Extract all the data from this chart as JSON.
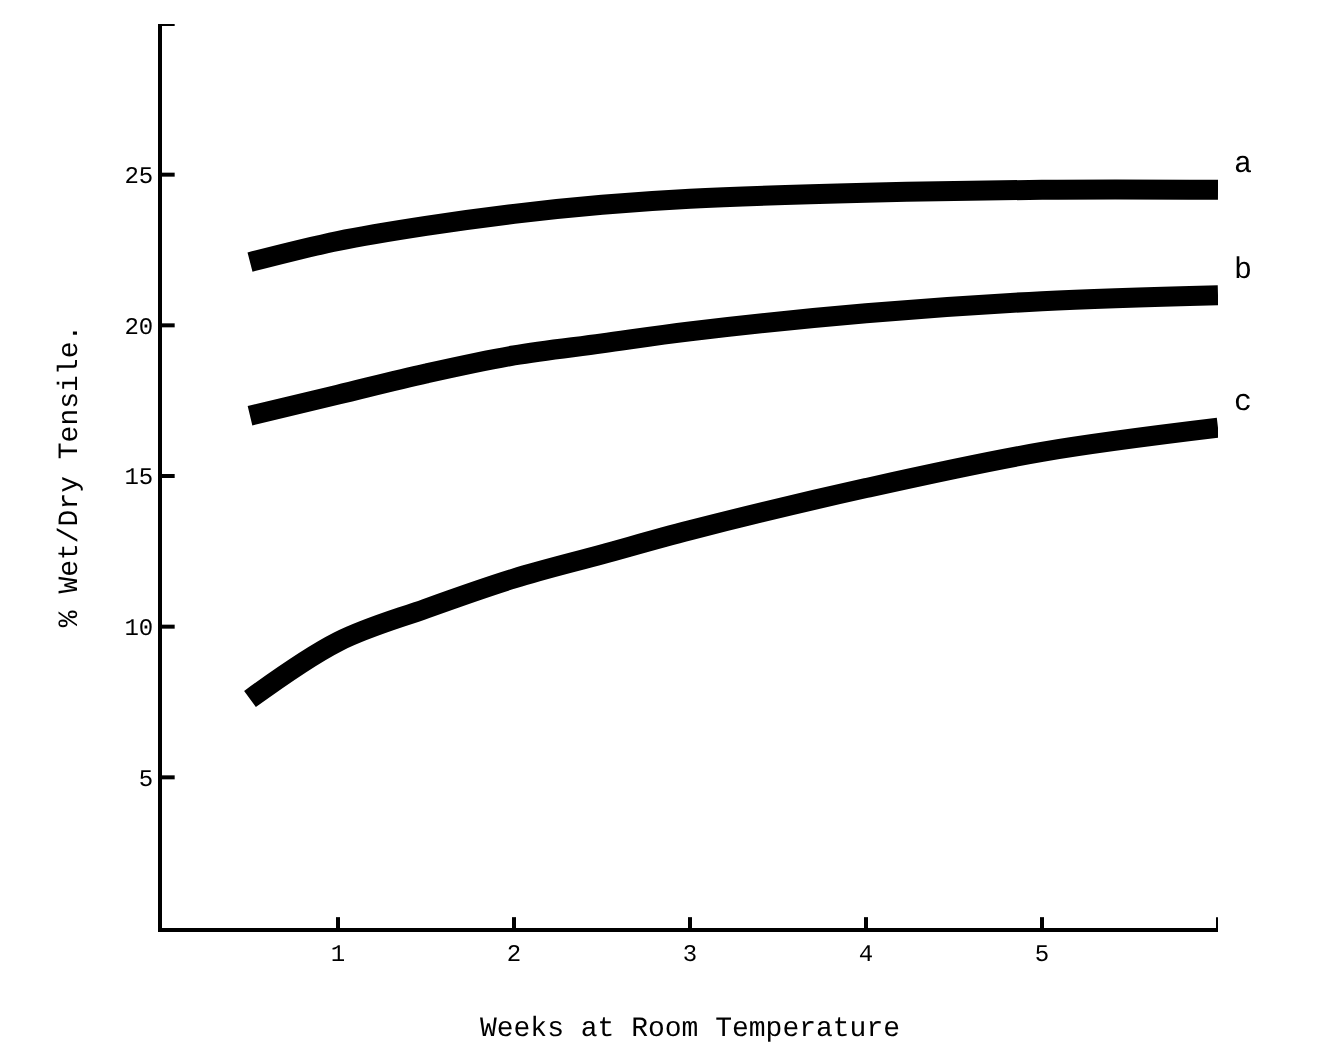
{
  "chart_data": {
    "type": "line",
    "xlabel": "Weeks at Room Temperature",
    "ylabel": "% Wet/Dry Tensile.",
    "xlim": [
      0,
      6
    ],
    "ylim": [
      0,
      30
    ],
    "xticks": [
      1,
      2,
      3,
      4,
      5,
      {
        "value": 6,
        "label": null
      }
    ],
    "yticks": [
      5,
      10,
      15,
      20,
      25,
      {
        "value": 30,
        "label": null
      }
    ],
    "grid": false,
    "legend": false,
    "marker": "none",
    "line_style": "solid",
    "x": [
      0.5,
      1,
      1.5,
      2,
      2.5,
      3,
      4,
      5,
      6
    ],
    "series": [
      {
        "name": "a",
        "color": "#000000",
        "values": [
          22.1,
          22.8,
          23.3,
          23.7,
          24.0,
          24.2,
          24.4,
          24.5,
          24.5
        ]
      },
      {
        "name": "b",
        "color": "#000000",
        "values": [
          17.0,
          17.7,
          18.4,
          19.0,
          19.4,
          19.8,
          20.4,
          20.8,
          21.0
        ]
      },
      {
        "name": "c",
        "color": "#000000",
        "values": [
          7.6,
          9.5,
          10.6,
          11.6,
          12.4,
          13.2,
          14.6,
          15.8,
          16.6
        ]
      }
    ]
  }
}
